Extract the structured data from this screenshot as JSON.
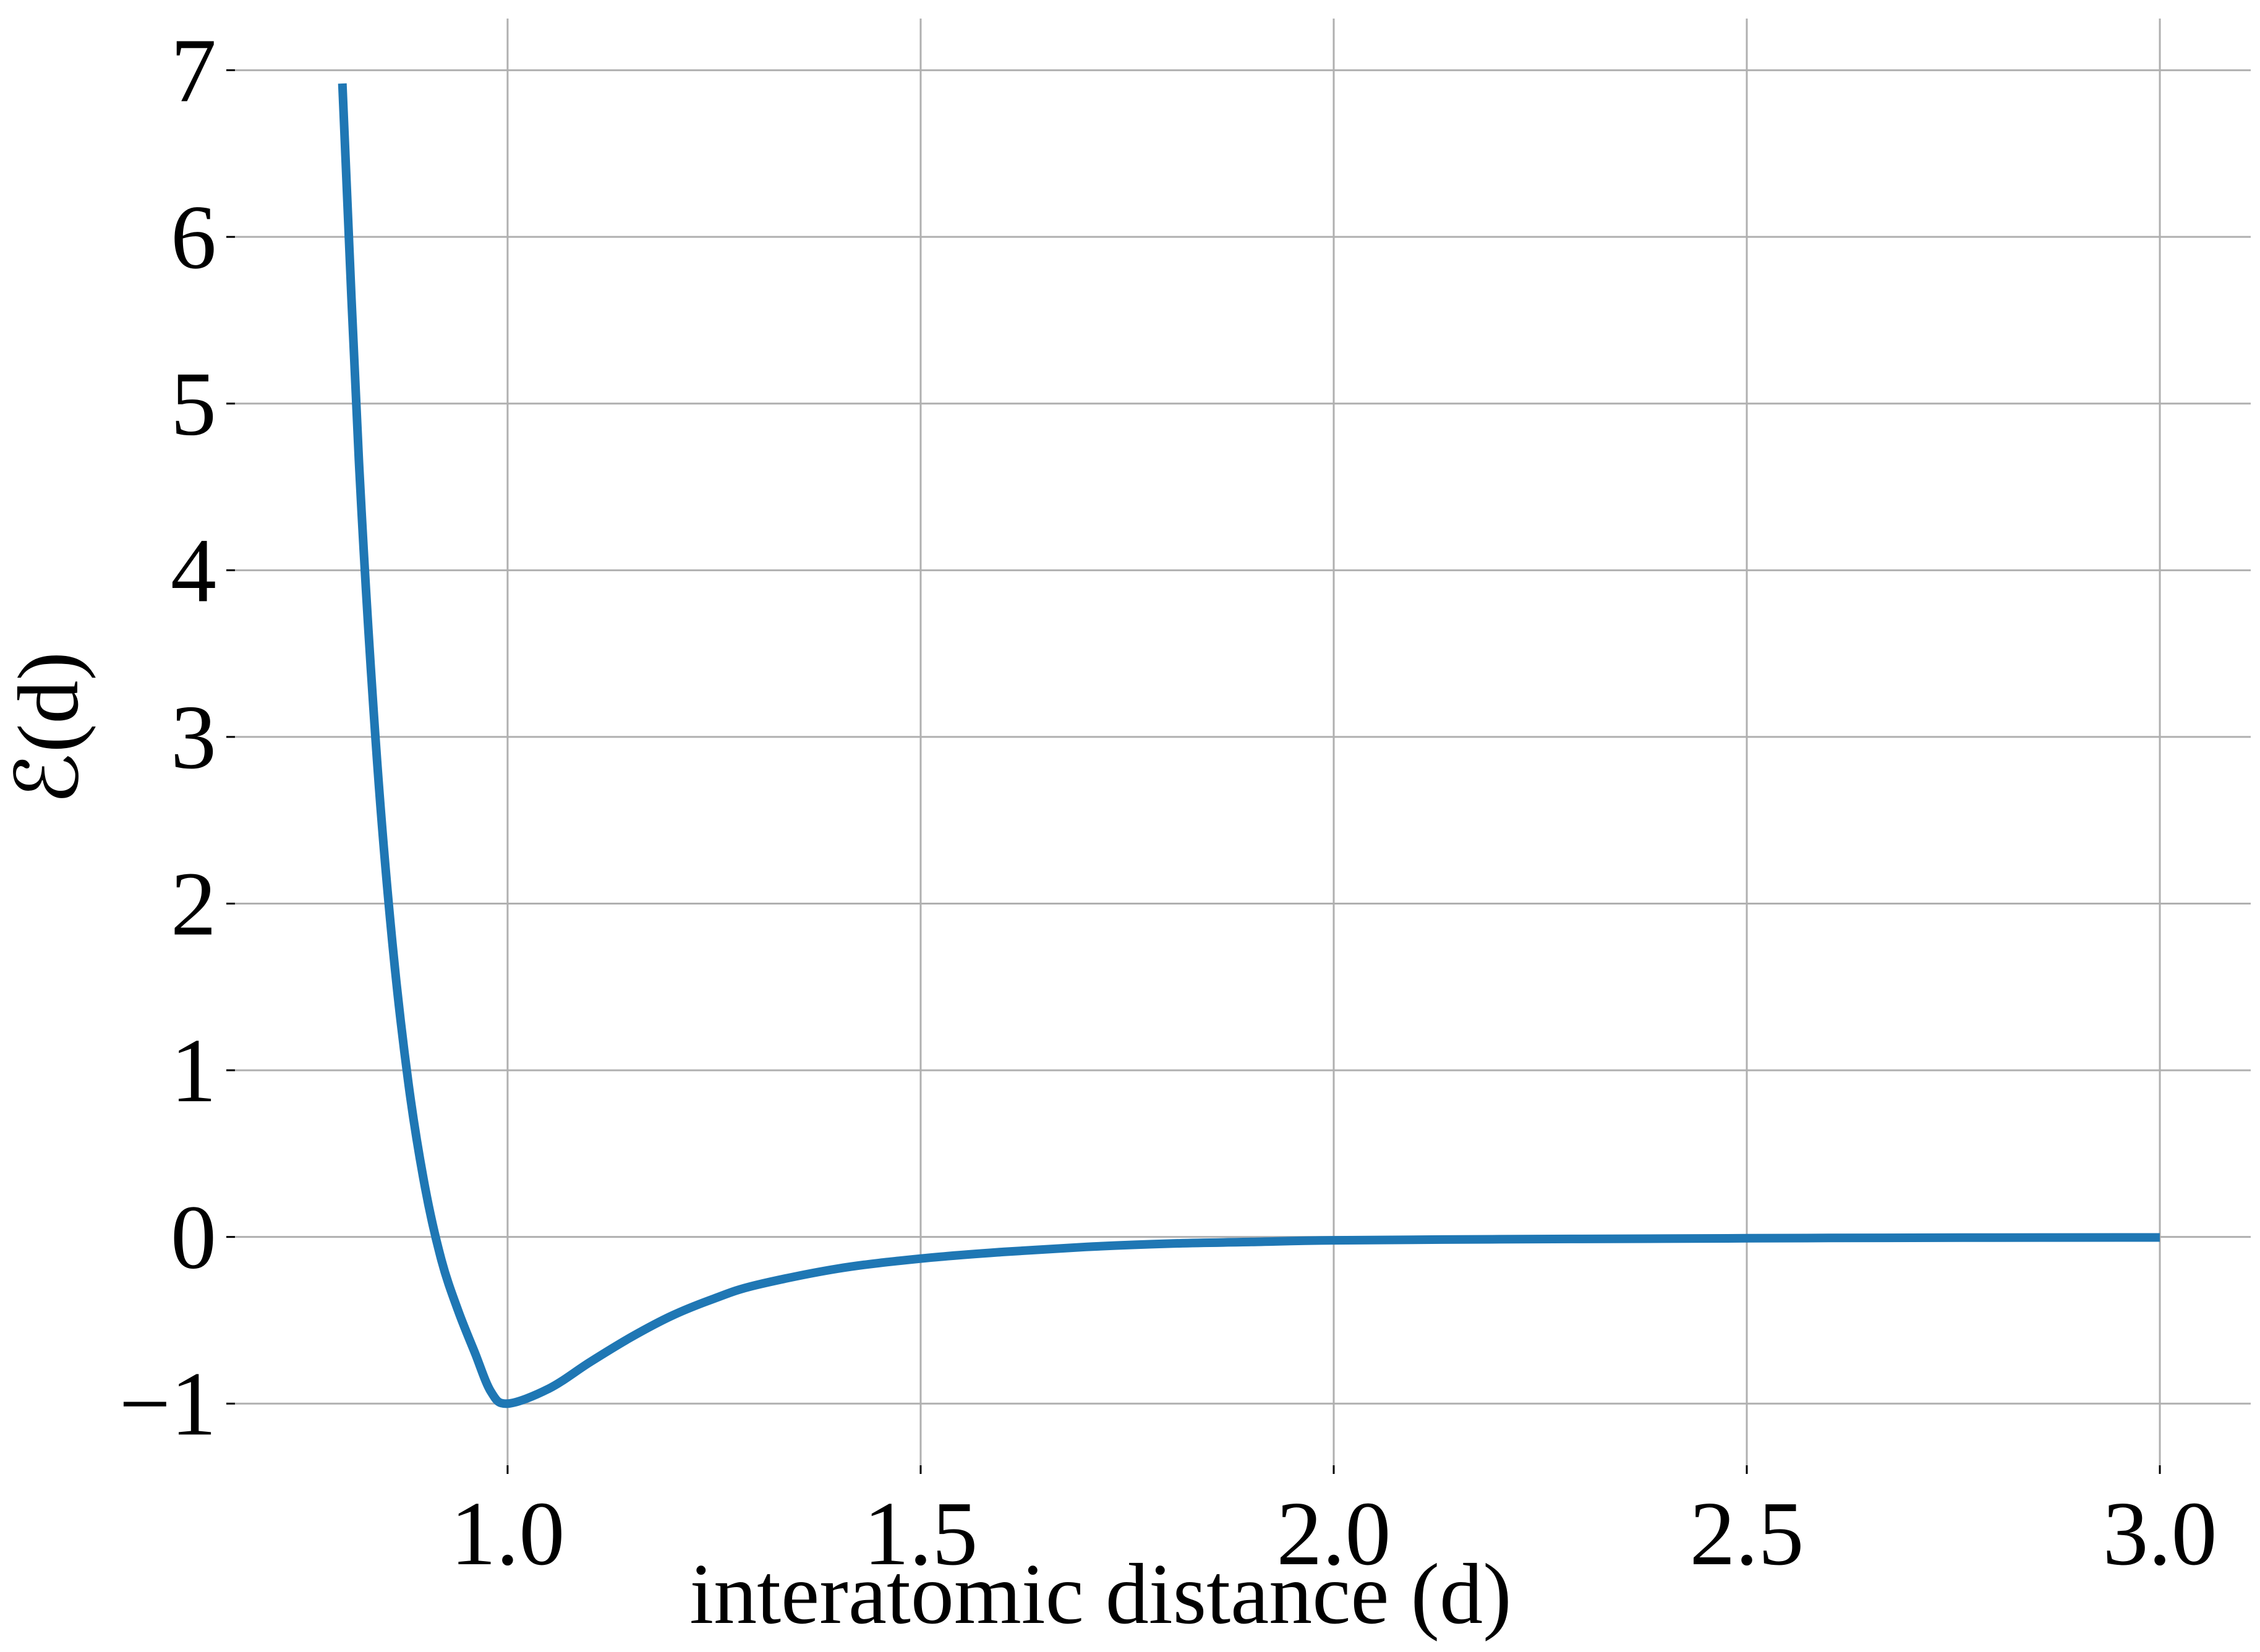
{
  "chart_data": {
    "type": "line",
    "title": "",
    "xlabel": "interatomic distance (d)",
    "ylabel": "ℰ(d)",
    "xlim": [
      0.67,
      3.11
    ],
    "ylim": [
      -1.37,
      7.31
    ],
    "grid": true,
    "x_ticks": [
      1.0,
      1.5,
      2.0,
      2.5,
      3.0
    ],
    "x_tick_labels": [
      "1.0",
      "1.5",
      "2.0",
      "2.5",
      "3.0"
    ],
    "y_ticks": [
      -1,
      0,
      1,
      2,
      3,
      4,
      5,
      6,
      7
    ],
    "y_tick_labels": [
      "−1",
      "0",
      "1",
      "2",
      "3",
      "4",
      "5",
      "6",
      "7"
    ],
    "series": [
      {
        "color": "#1f77b4",
        "x": [
          0.8,
          0.82,
          0.84,
          0.86,
          0.88,
          0.9,
          0.92,
          0.94,
          0.96,
          0.98,
          1.0,
          1.05,
          1.1,
          1.15,
          1.2,
          1.25,
          1.3,
          1.4,
          1.5,
          1.6,
          1.7,
          1.8,
          1.9,
          2.0,
          2.2,
          2.4,
          2.6,
          2.8,
          3.0
        ],
        "values": [
          6.92,
          4.66,
          3.0,
          1.79,
          0.92,
          0.3,
          -0.14,
          -0.44,
          -0.69,
          -0.93,
          -1.0,
          -0.91,
          -0.75,
          -0.6,
          -0.47,
          -0.37,
          -0.29,
          -0.19,
          -0.13,
          -0.09,
          -0.06,
          -0.04,
          -0.03,
          -0.02,
          -0.014,
          -0.01,
          -0.006,
          -0.004,
          -0.003
        ]
      }
    ]
  }
}
